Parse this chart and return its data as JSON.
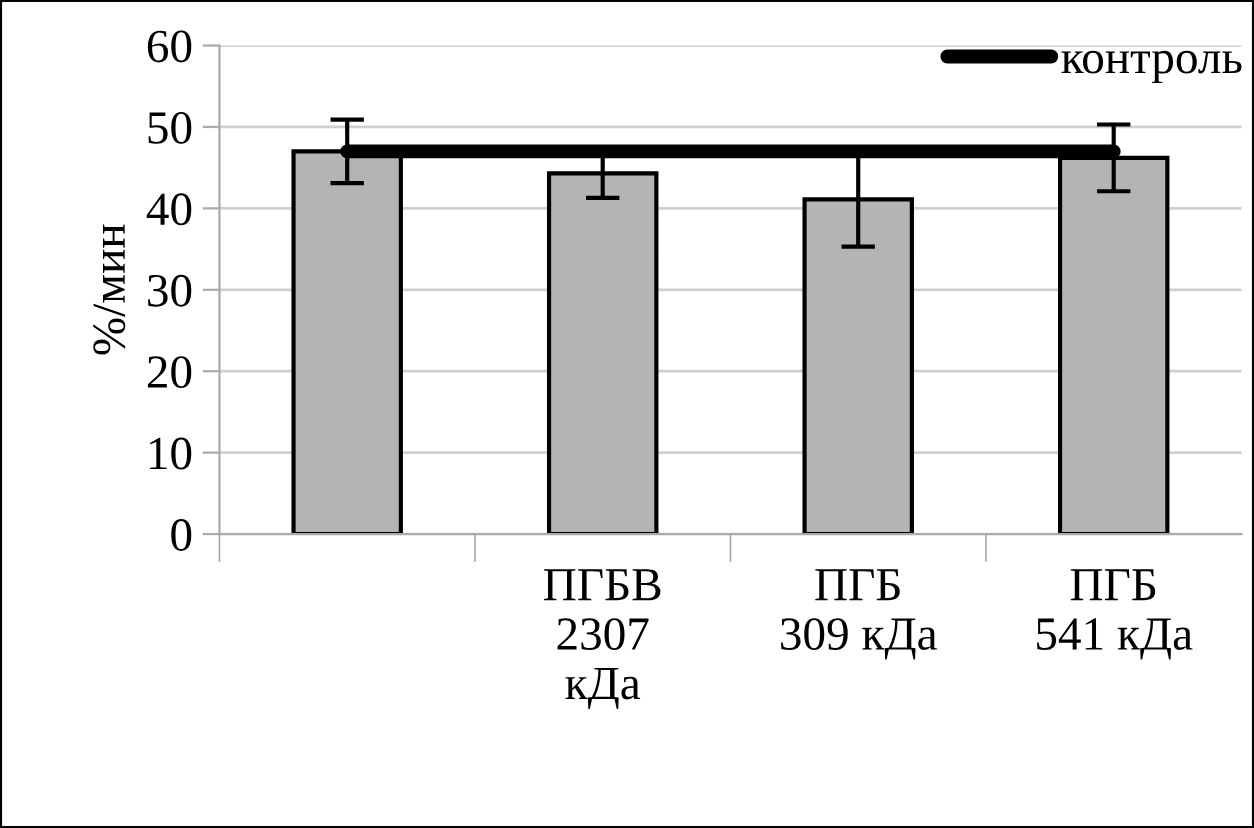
{
  "chart_data": {
    "type": "bar",
    "ylabel": "%/мин",
    "categories": [
      null,
      "ПГБВ\n2307\nкДа",
      "ПГБ\n309 кДа",
      "ПГБ\n541 кДа"
    ],
    "series": [
      {
        "color": "#b4b4b4",
        "values": [
          47,
          44.3,
          41.1,
          46.2
        ],
        "errors": [
          3.9,
          3,
          5.8,
          4.1
        ]
      },
      {
        "type": "line",
        "name": "контроль",
        "color": "#000000",
        "values": [
          47,
          47,
          47,
          47
        ]
      }
    ],
    "ylim": [
      0,
      60
    ],
    "yticks": [
      0,
      10,
      20,
      30,
      40,
      50,
      60
    ],
    "grid": "y",
    "legend": "top right",
    "marker": "none",
    "line_style": "solid"
  }
}
